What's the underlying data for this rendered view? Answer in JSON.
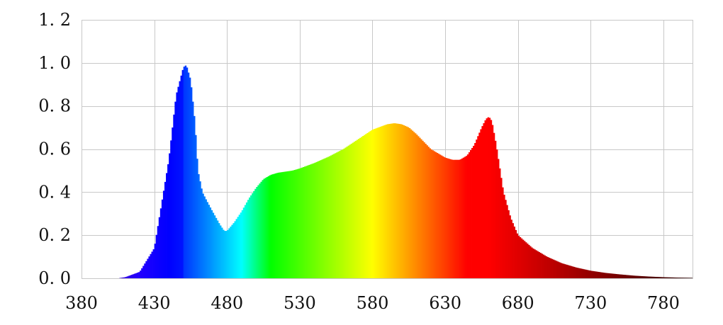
{
  "chart_data": {
    "type": "area",
    "title": "",
    "xlabel": "",
    "ylabel": "",
    "xlim": [
      380,
      800
    ],
    "ylim": [
      0.0,
      1.2
    ],
    "x_ticks": [
      380,
      430,
      480,
      530,
      580,
      630,
      680,
      730,
      780
    ],
    "x_tick_labels": [
      "380",
      "430",
      "480",
      "530",
      "580",
      "630",
      "680",
      "730",
      "780"
    ],
    "y_ticks": [
      0.0,
      0.2,
      0.4,
      0.6,
      0.8,
      1.0,
      1.2
    ],
    "y_tick_labels": [
      "0. 0",
      "0. 2",
      "0. 4",
      "0. 6",
      "0. 8",
      "1. 0",
      "1. 2"
    ],
    "grid": true,
    "legend": "none",
    "fill": "spectral-color",
    "series": [
      {
        "x": [
          380,
          405,
          410,
          420,
          430,
          440,
          445,
          450,
          452,
          455,
          458,
          460,
          463,
          466,
          470,
          475,
          478,
          480,
          485,
          490,
          495,
          500,
          505,
          510,
          515,
          520,
          525,
          530,
          540,
          550,
          560,
          570,
          580,
          590,
          595,
          600,
          605,
          610,
          620,
          630,
          635,
          640,
          645,
          650,
          655,
          658,
          660,
          662,
          665,
          670,
          675,
          680,
          690,
          700,
          710,
          720,
          730,
          740,
          750,
          760,
          770,
          780,
          790,
          800
        ],
        "y": [
          0.0,
          0.0,
          0.005,
          0.03,
          0.14,
          0.55,
          0.85,
          0.98,
          0.99,
          0.92,
          0.72,
          0.5,
          0.4,
          0.36,
          0.31,
          0.25,
          0.22,
          0.22,
          0.26,
          0.31,
          0.37,
          0.42,
          0.46,
          0.48,
          0.49,
          0.495,
          0.5,
          0.51,
          0.535,
          0.565,
          0.6,
          0.645,
          0.69,
          0.715,
          0.72,
          0.715,
          0.7,
          0.67,
          0.6,
          0.56,
          0.55,
          0.55,
          0.57,
          0.62,
          0.7,
          0.74,
          0.75,
          0.73,
          0.62,
          0.4,
          0.28,
          0.2,
          0.14,
          0.1,
          0.07,
          0.05,
          0.035,
          0.025,
          0.018,
          0.012,
          0.008,
          0.005,
          0.003,
          0.002
        ]
      }
    ]
  }
}
